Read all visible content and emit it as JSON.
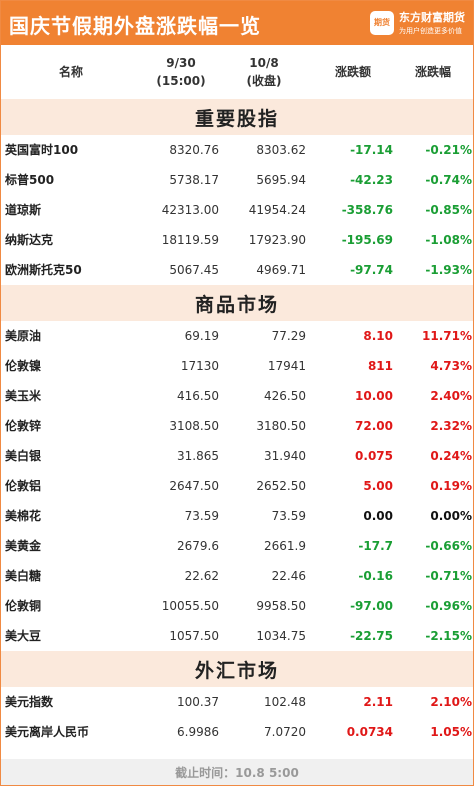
{
  "header": {
    "title": "国庆节假期外盘涨跌幅一览",
    "brand_name": "东方财富期货",
    "brand_slogan": "为用户创造更多价值",
    "logo_text": "期货"
  },
  "columns": {
    "name": "名称",
    "date1": "9/30",
    "date1_sub": "(15:00)",
    "date2": "10/8",
    "date2_sub": "(收盘)",
    "change": "涨跌额",
    "pct": "涨跌幅"
  },
  "sections": [
    {
      "title": "重要股指",
      "rows": [
        {
          "name": "英国富时100",
          "v1": "8320.76",
          "v2": "8303.62",
          "chg": "-17.14",
          "pct": "-0.21%",
          "dir": "down"
        },
        {
          "name": "标普500",
          "v1": "5738.17",
          "v2": "5695.94",
          "chg": "-42.23",
          "pct": "-0.74%",
          "dir": "down"
        },
        {
          "name": "道琼斯",
          "v1": "42313.00",
          "v2": "41954.24",
          "chg": "-358.76",
          "pct": "-0.85%",
          "dir": "down"
        },
        {
          "name": "纳斯达克",
          "v1": "18119.59",
          "v2": "17923.90",
          "chg": "-195.69",
          "pct": "-1.08%",
          "dir": "down"
        },
        {
          "name": "欧洲斯托克50",
          "v1": "5067.45",
          "v2": "4969.71",
          "chg": "-97.74",
          "pct": "-1.93%",
          "dir": "down"
        }
      ]
    },
    {
      "title": "商品市场",
      "rows": [
        {
          "name": "美原油",
          "v1": "69.19",
          "v2": "77.29",
          "chg": "8.10",
          "pct": "11.71%",
          "dir": "up"
        },
        {
          "name": "伦敦镍",
          "v1": "17130",
          "v2": "17941",
          "chg": "811",
          "pct": "4.73%",
          "dir": "up"
        },
        {
          "name": "美玉米",
          "v1": "416.50",
          "v2": "426.50",
          "chg": "10.00",
          "pct": "2.40%",
          "dir": "up"
        },
        {
          "name": "伦敦锌",
          "v1": "3108.50",
          "v2": "3180.50",
          "chg": "72.00",
          "pct": "2.32%",
          "dir": "up"
        },
        {
          "name": "美白银",
          "v1": "31.865",
          "v2": "31.940",
          "chg": "0.075",
          "pct": "0.24%",
          "dir": "up"
        },
        {
          "name": "伦敦铝",
          "v1": "2647.50",
          "v2": "2652.50",
          "chg": "5.00",
          "pct": "0.19%",
          "dir": "up"
        },
        {
          "name": "美棉花",
          "v1": "73.59",
          "v2": "73.59",
          "chg": "0.00",
          "pct": "0.00%",
          "dir": "flat"
        },
        {
          "name": "美黄金",
          "v1": "2679.6",
          "v2": "2661.9",
          "chg": "-17.7",
          "pct": "-0.66%",
          "dir": "down"
        },
        {
          "name": "美白糖",
          "v1": "22.62",
          "v2": "22.46",
          "chg": "-0.16",
          "pct": "-0.71%",
          "dir": "down"
        },
        {
          "name": "伦敦铜",
          "v1": "10055.50",
          "v2": "9958.50",
          "chg": "-97.00",
          "pct": "-0.96%",
          "dir": "down"
        },
        {
          "name": "美大豆",
          "v1": "1057.50",
          "v2": "1034.75",
          "chg": "-22.75",
          "pct": "-2.15%",
          "dir": "down"
        }
      ]
    },
    {
      "title": "外汇市场",
      "rows": [
        {
          "name": "美元指数",
          "v1": "100.37",
          "v2": "102.48",
          "chg": "2.11",
          "pct": "2.10%",
          "dir": "up"
        },
        {
          "name": "美元离岸人民币",
          "v1": "6.9986",
          "v2": "7.0720",
          "chg": "0.0734",
          "pct": "1.05%",
          "dir": "up"
        }
      ]
    }
  ],
  "footer": {
    "text": "截止时间：10.8 5:00"
  },
  "colors": {
    "accent": "#f08232",
    "section_bg": "#fbe9dc",
    "up": "#e01818",
    "down": "#1a9e34"
  }
}
